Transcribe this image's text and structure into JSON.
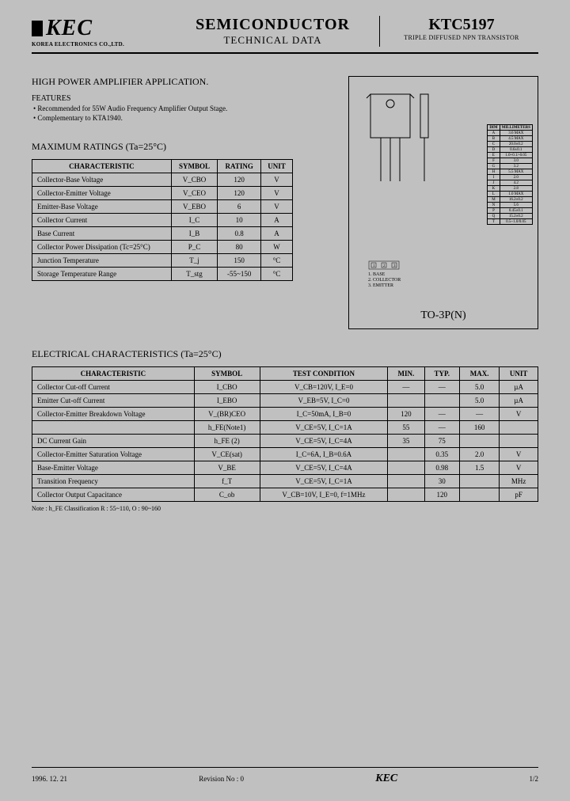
{
  "header": {
    "company_sub": "KOREA ELECTRONICS CO.,LTD.",
    "mid_l1": "SEMICONDUCTOR",
    "mid_l2": "TECHNICAL DATA",
    "part": "KTC5197",
    "desc": "TRIPLE DIFFUSED NPN TRANSISTOR"
  },
  "app_title": "HIGH POWER AMPLIFIER APPLICATION.",
  "features_title": "FEATURES",
  "features": [
    "Recommended for 55W Audio Frequency Amplifier Output Stage.",
    "Complementary to KTA1940."
  ],
  "ratings_title": "MAXIMUM RATINGS (Ta=25°C)",
  "ratings_cols": [
    "CHARACTERISTIC",
    "SYMBOL",
    "RATING",
    "UNIT"
  ],
  "ratings": [
    [
      "Collector-Base Voltage",
      "V_CBO",
      "120",
      "V"
    ],
    [
      "Collector-Emitter Voltage",
      "V_CEO",
      "120",
      "V"
    ],
    [
      "Emitter-Base Voltage",
      "V_EBO",
      "6",
      "V"
    ],
    [
      "Collector Current",
      "I_C",
      "10",
      "A"
    ],
    [
      "Base Current",
      "I_B",
      "0.8",
      "A"
    ],
    [
      "Collector Power Dissipation (Tc=25°C)",
      "P_C",
      "80",
      "W"
    ],
    [
      "Junction Temperature",
      "T_j",
      "150",
      "°C"
    ],
    [
      "Storage Temperature Range",
      "T_stg",
      "-55~150",
      "°C"
    ]
  ],
  "elec_title": "ELECTRICAL CHARACTERISTICS (Ta=25°C)",
  "elec_cols": [
    "CHARACTERISTIC",
    "SYMBOL",
    "TEST CONDITION",
    "MIN.",
    "TYP.",
    "MAX.",
    "UNIT"
  ],
  "elec": [
    [
      "Collector Cut-off Current",
      "I_CBO",
      "V_CB=120V, I_E=0",
      "—",
      "—",
      "5.0",
      "µA"
    ],
    [
      "Emitter Cut-off Current",
      "I_EBO",
      "V_EB=5V, I_C=0",
      "",
      "",
      "5.0",
      "µA"
    ],
    [
      "Collector-Emitter Breakdown Voltage",
      "V_(BR)CEO",
      "I_C=50mA, I_B=0",
      "120",
      "—",
      "—",
      "V"
    ],
    [
      "",
      "h_FE(Note1)",
      "V_CE=5V, I_C=1A",
      "55",
      "—",
      "160",
      ""
    ],
    [
      "DC Current Gain",
      "h_FE (2)",
      "V_CE=5V, I_C=4A",
      "35",
      "75",
      "",
      ""
    ],
    [
      "Collector-Emitter Saturation Voltage",
      "V_CE(sat)",
      "I_C=6A, I_B=0.6A",
      "",
      "0.35",
      "2.0",
      "V"
    ],
    [
      "Base-Emitter Voltage",
      "V_BE",
      "V_CE=5V, I_C=4A",
      "",
      "0.98",
      "1.5",
      "V"
    ],
    [
      "Transition Frequency",
      "f_T",
      "V_CE=5V, I_C=1A",
      "",
      "30",
      "",
      "MHz"
    ],
    [
      "Collector Output Capacitance",
      "C_ob",
      "V_CB=10V, I_E=0, f=1MHz",
      "",
      "120",
      "",
      "pF"
    ]
  ],
  "note": "Note : h_FE Classification    R : 55~110,    O : 90~160",
  "package": {
    "label": "TO-3P(N)",
    "pins": [
      "1. BASE",
      "2. COLLECTOR",
      "3. EMITTER"
    ],
    "dim_header": [
      "DIM",
      "MILLIMETERS"
    ],
    "dims": [
      [
        "A",
        "3.6 MAX"
      ],
      [
        "B",
        "4.5 MAX"
      ],
      [
        "C",
        "20.0±0.2"
      ],
      [
        "D",
        "0.6±0.1"
      ],
      [
        "E",
        "1.0+0.1/-0.05"
      ],
      [
        "F",
        "3.0"
      ],
      [
        "G",
        "3.2"
      ],
      [
        "H",
        "5.5 MAX"
      ],
      [
        "I",
        "2.0"
      ],
      [
        "J",
        "4.2"
      ],
      [
        "K",
        "2.8"
      ],
      [
        "L",
        "1.0 MAX"
      ],
      [
        "M",
        "16.2±0.2"
      ],
      [
        "N",
        "5.6"
      ],
      [
        "P",
        "0.45±0.1"
      ],
      [
        "Q",
        "15.2±0.2"
      ],
      [
        "T",
        "0.5~1.0/0.05"
      ]
    ]
  },
  "footer": {
    "date": "1996. 12. 21",
    "rev": "Revision No : 0",
    "logo": "KEC",
    "page": "1/2"
  },
  "colors": {
    "bg": "#c0c0c0",
    "text": "#000000",
    "border": "#000000"
  }
}
